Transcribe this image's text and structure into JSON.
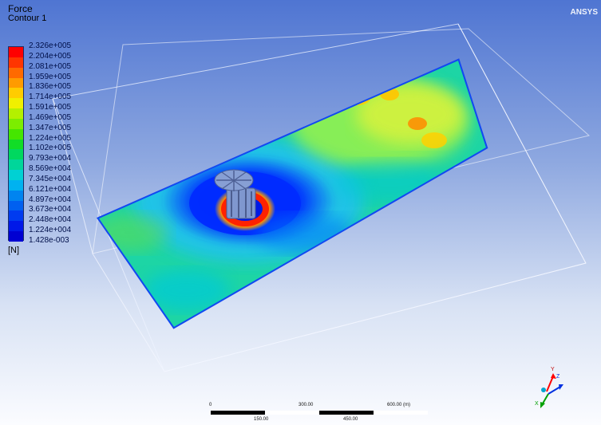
{
  "app": {
    "logo": "ANSYS"
  },
  "legend": {
    "title": "Force",
    "subtitle": "Contour 1",
    "unit": "[N]",
    "levels": [
      "2.326e+005",
      "2.204e+005",
      "2.081e+005",
      "1.959e+005",
      "1.836e+005",
      "1.714e+005",
      "1.591e+005",
      "1.469e+005",
      "1.347e+005",
      "1.224e+005",
      "1.102e+005",
      "9.793e+004",
      "8.569e+004",
      "7.345e+004",
      "6.121e+004",
      "4.897e+004",
      "3.673e+004",
      "2.448e+004",
      "1.224e+004",
      "1.428e-003"
    ],
    "colors": [
      "#ff0000",
      "#ff3500",
      "#ff6a00",
      "#ff9b00",
      "#ffcc00",
      "#f0f000",
      "#b4f000",
      "#7ced00",
      "#45e600",
      "#11dd27",
      "#00d85f",
      "#00d69a",
      "#00d1d3",
      "#00b2f0",
      "#0084f0",
      "#0060f0",
      "#003bf0",
      "#0018e8",
      "#0000d2"
    ]
  },
  "scale": {
    "top_labels": [
      "0",
      "300.00",
      "600.00 (m)"
    ],
    "bottom_labels": [
      "150.00",
      "450.00"
    ]
  },
  "triad": {
    "axis_labels": [
      "Y",
      "Z",
      "X"
    ]
  }
}
